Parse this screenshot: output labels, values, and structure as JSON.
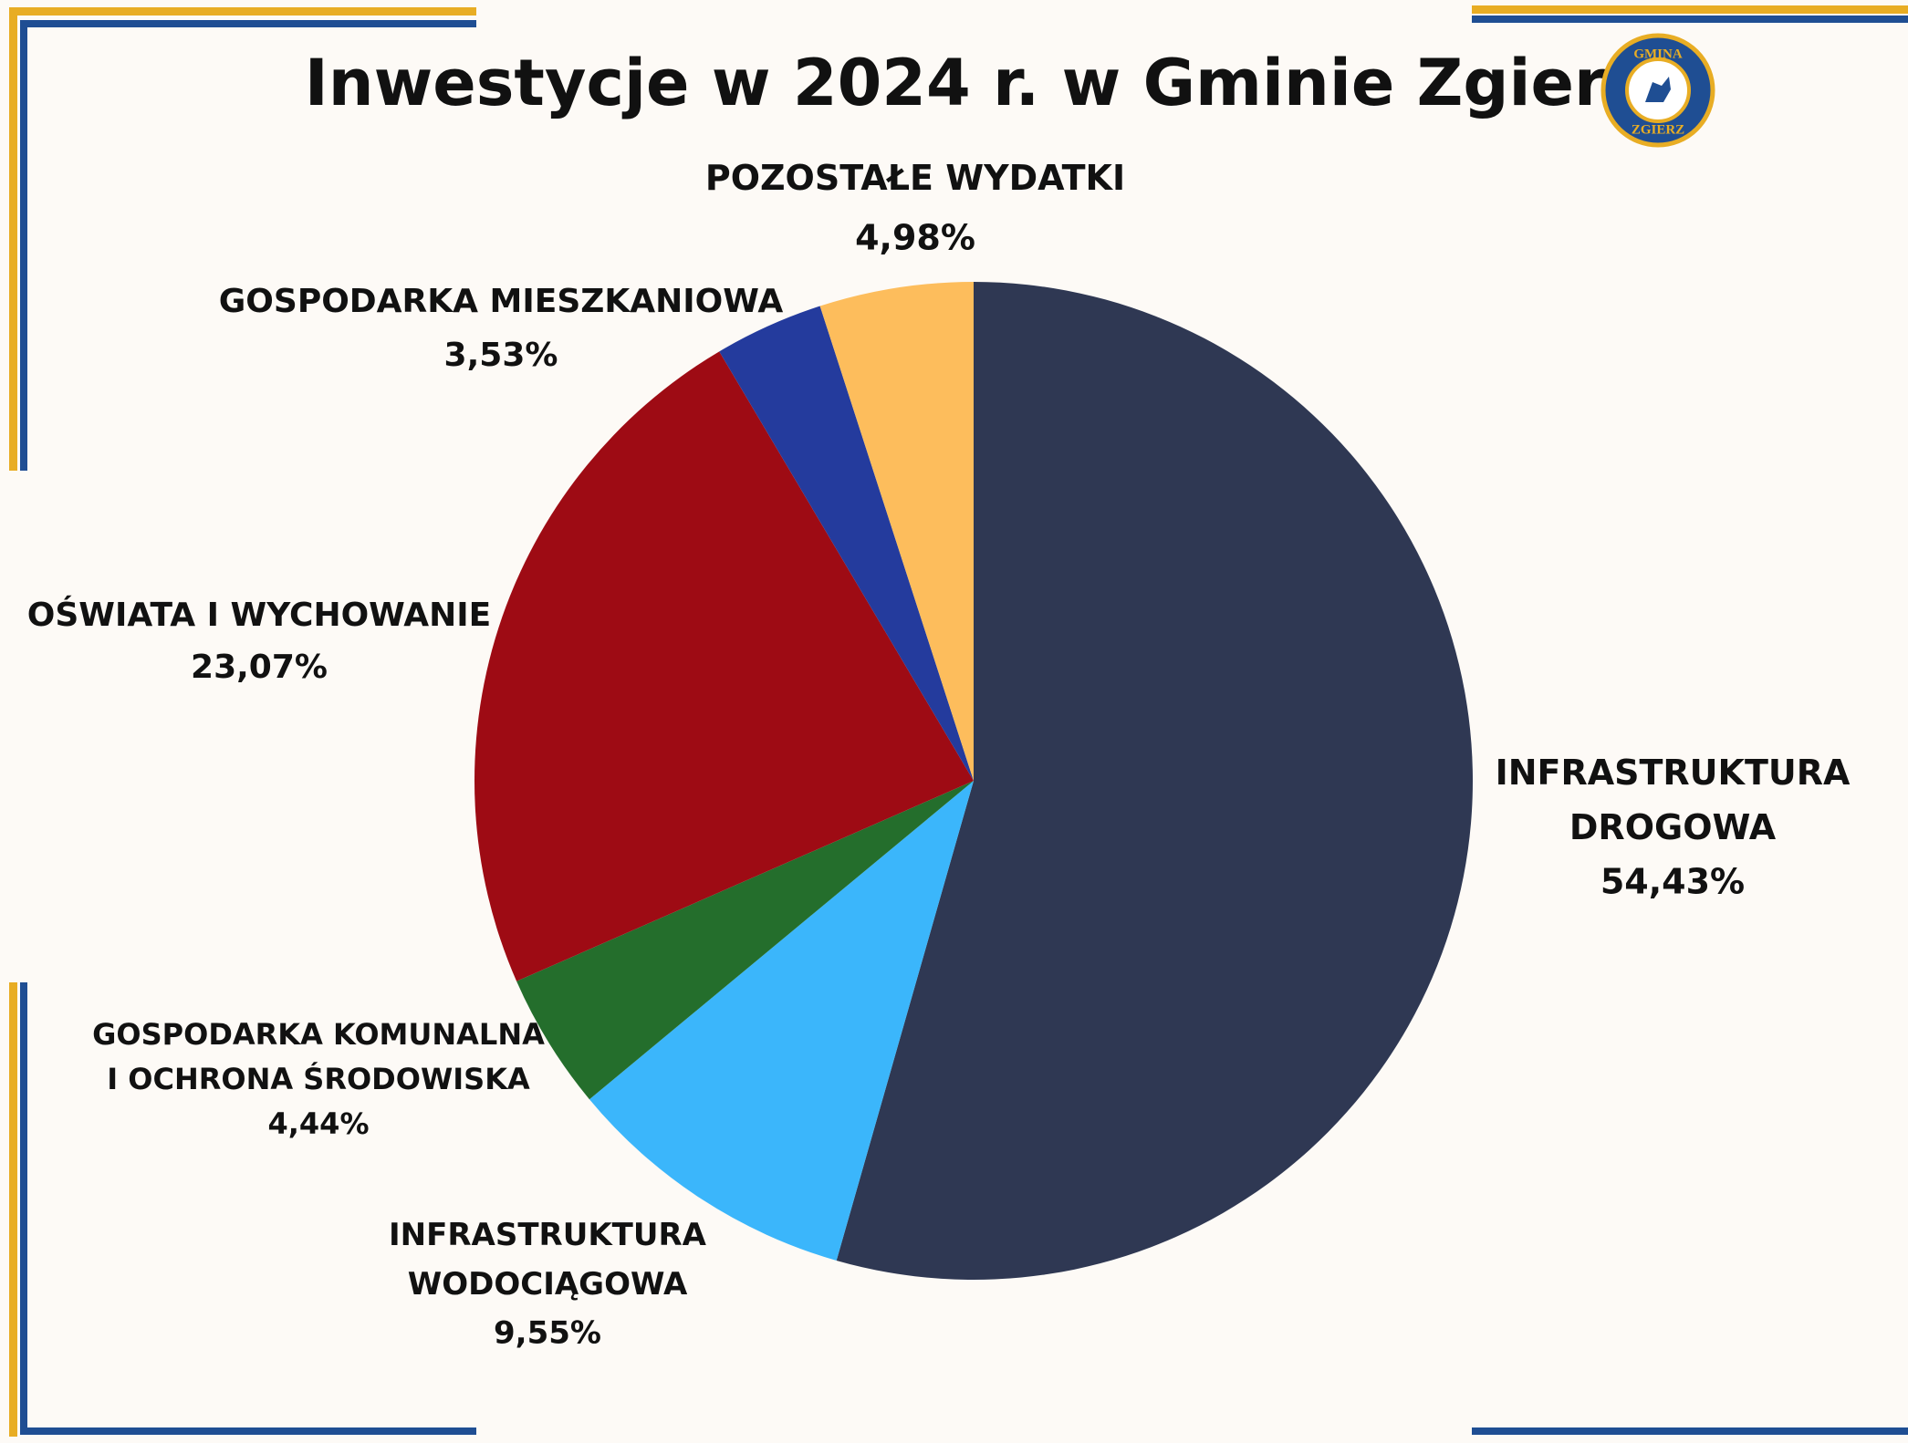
{
  "chart_data": {
    "type": "pie",
    "title": "Inwestycje w 2024 r. w Gminie Zgierz",
    "logo": {
      "top": "GMINA",
      "bottom": "ZGIERZ"
    },
    "categories": [
      "INFRASTRUKTURA\nDROGOWA",
      "INFRASTRUKTURA\nWODOCIĄGOWA",
      "GOSPODARKA KOMUNALNA\nI OCHRONA ŚRODOWISKA",
      "OŚWIATA I WYCHOWANIE",
      "GOSPODARKA MIESZKANIOWA",
      "POZOSTAŁE WYDATKI"
    ],
    "values": [
      54.43,
      9.55,
      4.44,
      23.07,
      3.53,
      4.98
    ],
    "value_labels": [
      "54,43%",
      "9,55%",
      "4,44%",
      "23,07%",
      "3,53%",
      "4,98%"
    ],
    "colors": [
      "#2f3853",
      "#3bb6fb",
      "#246e2c",
      "#9e0b14",
      "#243b9d",
      "#fdbd5c"
    ]
  }
}
